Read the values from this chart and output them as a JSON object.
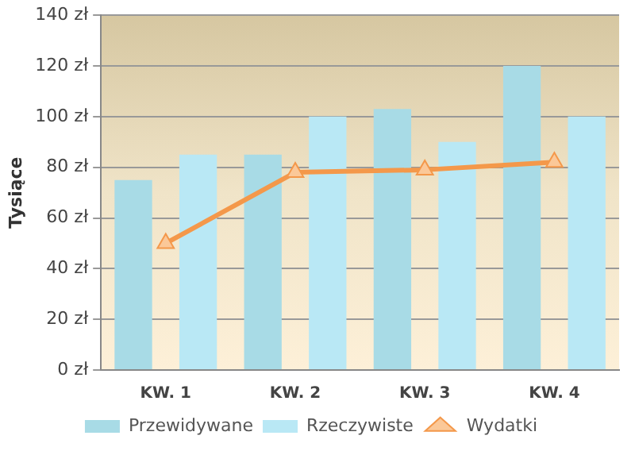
{
  "chart_data": {
    "type": "bar",
    "ylabel": "Tysiące",
    "categories": [
      "KW. 1",
      "KW. 2",
      "KW. 3",
      "KW. 4"
    ],
    "series": [
      {
        "name": "Przewidywane",
        "color": "#a8dbe6",
        "values": [
          75,
          85,
          103,
          120
        ]
      },
      {
        "name": "Rzeczywiste",
        "color": "#b9e8f5",
        "values": [
          85,
          100,
          90,
          100
        ]
      },
      {
        "name": "Wydatki",
        "type": "line",
        "color": "#f4984a",
        "values": [
          50,
          78,
          79,
          82
        ],
        "marker": "triangle"
      }
    ],
    "ylim": [
      0,
      140
    ],
    "yticks": [
      {
        "value": 0,
        "label": "0 zł"
      },
      {
        "value": 20,
        "label": "20 zł"
      },
      {
        "value": 40,
        "label": "40 zł"
      },
      {
        "value": 60,
        "label": "60 zł"
      },
      {
        "value": 80,
        "label": "80 zł"
      },
      {
        "value": 100,
        "label": "100 zł"
      },
      {
        "value": 120,
        "label": "120 zł"
      },
      {
        "value": 140,
        "label": "140 zł"
      }
    ],
    "grid": "y",
    "legend": "bottom"
  }
}
